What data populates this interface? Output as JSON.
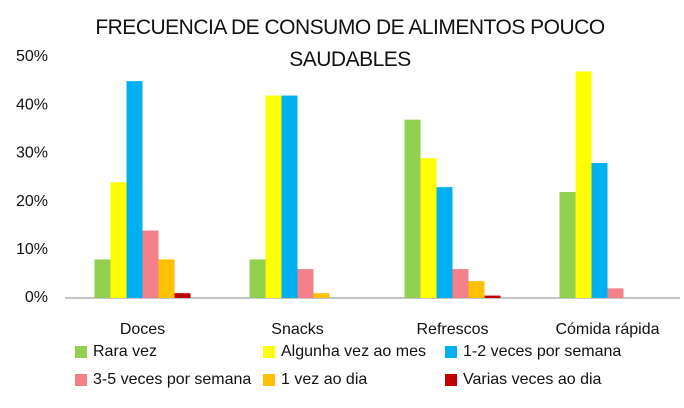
{
  "chart_data": {
    "type": "bar",
    "title": "FRECUENCIA DE CONSUMO DE ALIMENTOS POUCO SAUDABLES",
    "categories": [
      "Doces",
      "Snacks",
      "Refrescos",
      "Cómida rápida"
    ],
    "series": [
      {
        "name": "Rara vez",
        "color": "#92d050",
        "values": [
          8,
          8,
          37,
          22
        ]
      },
      {
        "name": "Algunha vez ao mes",
        "color": "#ffff00",
        "values": [
          24,
          42,
          29,
          47
        ]
      },
      {
        "name": "1-2 veces por semana",
        "color": "#00b0f0",
        "values": [
          45,
          42,
          23,
          28
        ]
      },
      {
        "name": "3-5 veces por semana",
        "color": "#f4818a",
        "values": [
          14,
          6,
          6,
          2
        ]
      },
      {
        "name": "1 vez ao dia",
        "color": "#ffc000",
        "values": [
          8,
          1,
          3.5,
          0
        ]
      },
      {
        "name": "Varias veces ao dia",
        "color": "#c00000",
        "values": [
          1,
          0,
          0.5,
          0
        ]
      }
    ],
    "ylim": [
      0,
      50
    ],
    "yticks": [
      {
        "value": 0,
        "label": "0%"
      },
      {
        "value": 10,
        "label": "10%"
      },
      {
        "value": 20,
        "label": "20%"
      },
      {
        "value": 30,
        "label": "30%"
      },
      {
        "value": 40,
        "label": "40%"
      },
      {
        "value": 50,
        "label": "50%"
      }
    ],
    "grid": false,
    "legend": "bottom"
  }
}
